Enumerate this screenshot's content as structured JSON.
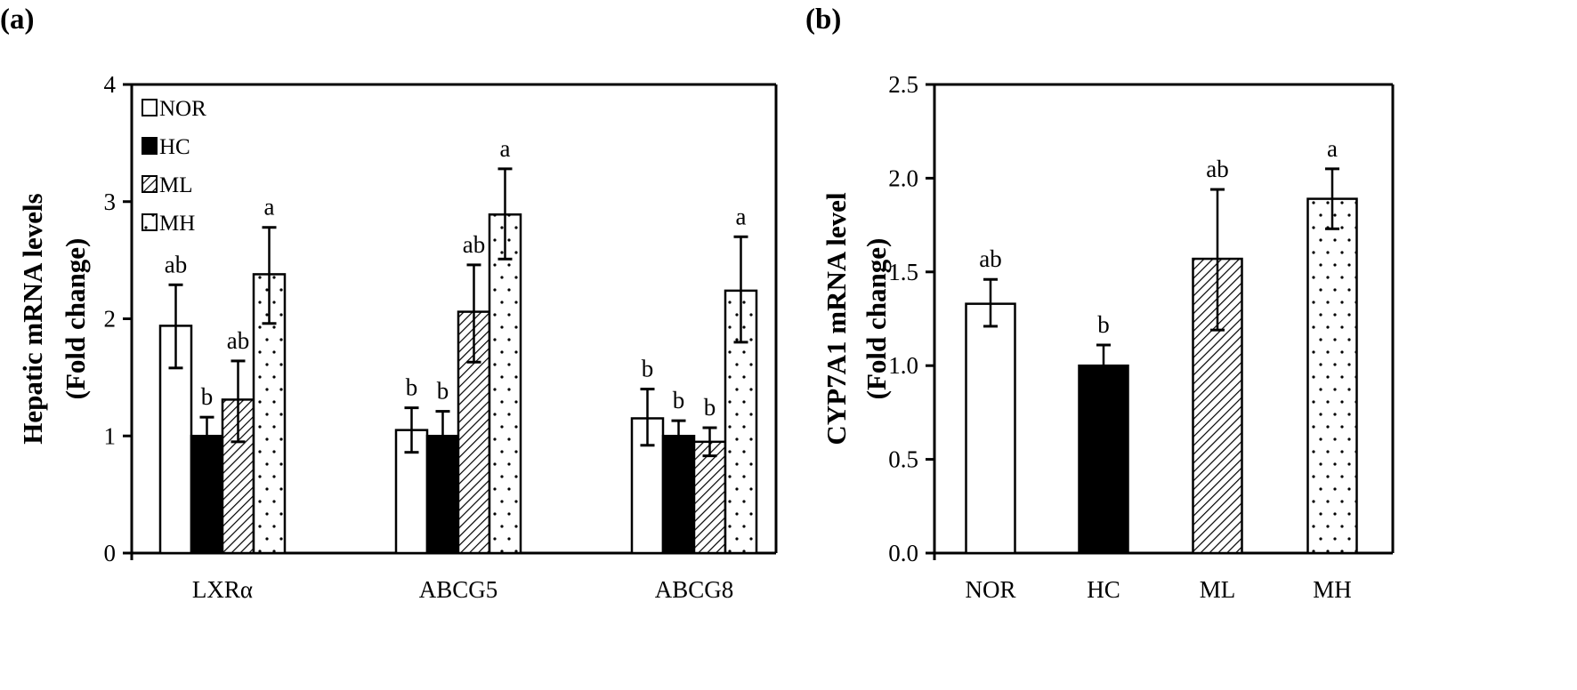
{
  "chart_data": [
    {
      "type": "bar",
      "panel_label": "(a)",
      "ylabel_line1": "Hepatic mRNA levels",
      "ylabel_line2": "(Fold change)",
      "xlabel": "",
      "ylim": [
        0,
        4
      ],
      "yticks": [
        "0",
        "1",
        "2",
        "3",
        "4"
      ],
      "categories": [
        "LXRα",
        "ABCG5",
        "ABCG8"
      ],
      "legend_position": "top-left",
      "series": [
        {
          "name": "NOR",
          "fill": "white",
          "values": [
            1.94,
            1.05,
            1.15
          ],
          "err_upper": [
            2.29,
            1.24,
            1.4
          ],
          "err_lower": [
            1.58,
            0.86,
            0.92
          ],
          "sig": [
            "ab",
            "b",
            "b"
          ]
        },
        {
          "name": "HC",
          "fill": "black",
          "values": [
            1.0,
            1.0,
            1.0
          ],
          "err_upper": [
            1.16,
            1.21,
            1.13
          ],
          "err_lower": [
            0.84,
            0.79,
            0.87
          ],
          "sig": [
            "b",
            "b",
            "b"
          ]
        },
        {
          "name": "ML",
          "fill": "hatch",
          "values": [
            1.31,
            2.06,
            0.95
          ],
          "err_upper": [
            1.64,
            2.46,
            1.07
          ],
          "err_lower": [
            0.95,
            1.63,
            0.83
          ],
          "sig": [
            "ab",
            "ab",
            "b"
          ]
        },
        {
          "name": "MH",
          "fill": "dots",
          "values": [
            2.38,
            2.89,
            2.24
          ],
          "err_upper": [
            2.78,
            3.28,
            2.7
          ],
          "err_lower": [
            1.96,
            2.51,
            1.8
          ],
          "sig": [
            "a",
            "a",
            "a"
          ]
        }
      ]
    },
    {
      "type": "bar",
      "panel_label": "(b)",
      "ylabel_line1": "CYP7A1 mRNA level",
      "ylabel_line2": "(Fold change)",
      "xlabel": "",
      "ylim": [
        0,
        2.5
      ],
      "yticks": [
        "0.0",
        "0.5",
        "1.0",
        "1.5",
        "2.0",
        "2.5"
      ],
      "categories": [
        "NOR",
        "HC",
        "ML",
        "MH"
      ],
      "fills": [
        "white",
        "black",
        "hatch",
        "dots"
      ],
      "values": [
        1.33,
        1.0,
        1.57,
        1.89
      ],
      "err_upper": [
        1.46,
        1.11,
        1.94,
        2.05
      ],
      "err_lower": [
        1.21,
        0.89,
        1.19,
        1.73
      ],
      "sig": [
        "ab",
        "b",
        "ab",
        "a"
      ]
    }
  ]
}
